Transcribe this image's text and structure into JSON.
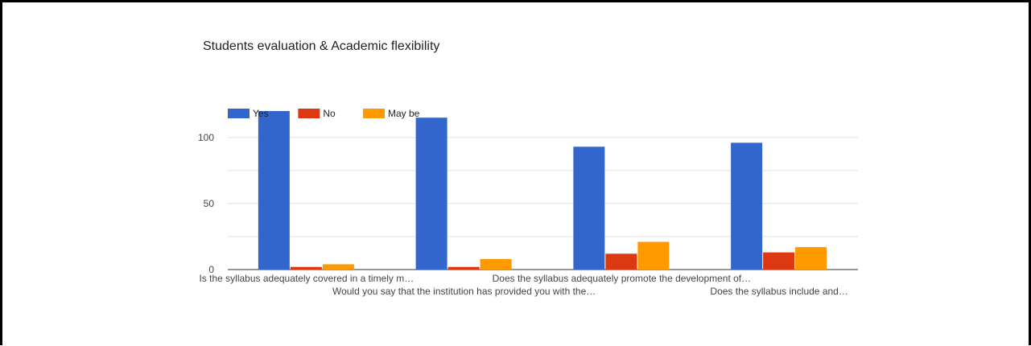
{
  "chart_data": {
    "type": "bar",
    "title": "Students evaluation & Academic flexibility",
    "xlabel": "",
    "ylabel": "",
    "ylim": [
      0,
      120
    ],
    "yticks": [
      0,
      50,
      100
    ],
    "grid": true,
    "legend_position": "top-left",
    "categories": [
      "Is the syllabus adequately covered in a timely m…",
      "Would you say that the institution has provided you with the…",
      "Does the syllabus adequately promote the development of…",
      "Does the syllabus include and…"
    ],
    "series": [
      {
        "name": "Yes",
        "color": "#3366cc",
        "values": [
          120,
          115,
          93,
          96
        ]
      },
      {
        "name": "No",
        "color": "#dc3912",
        "values": [
          2,
          2,
          12,
          13
        ]
      },
      {
        "name": "May be",
        "color": "#ff9900",
        "values": [
          4,
          8,
          21,
          17
        ]
      }
    ]
  }
}
